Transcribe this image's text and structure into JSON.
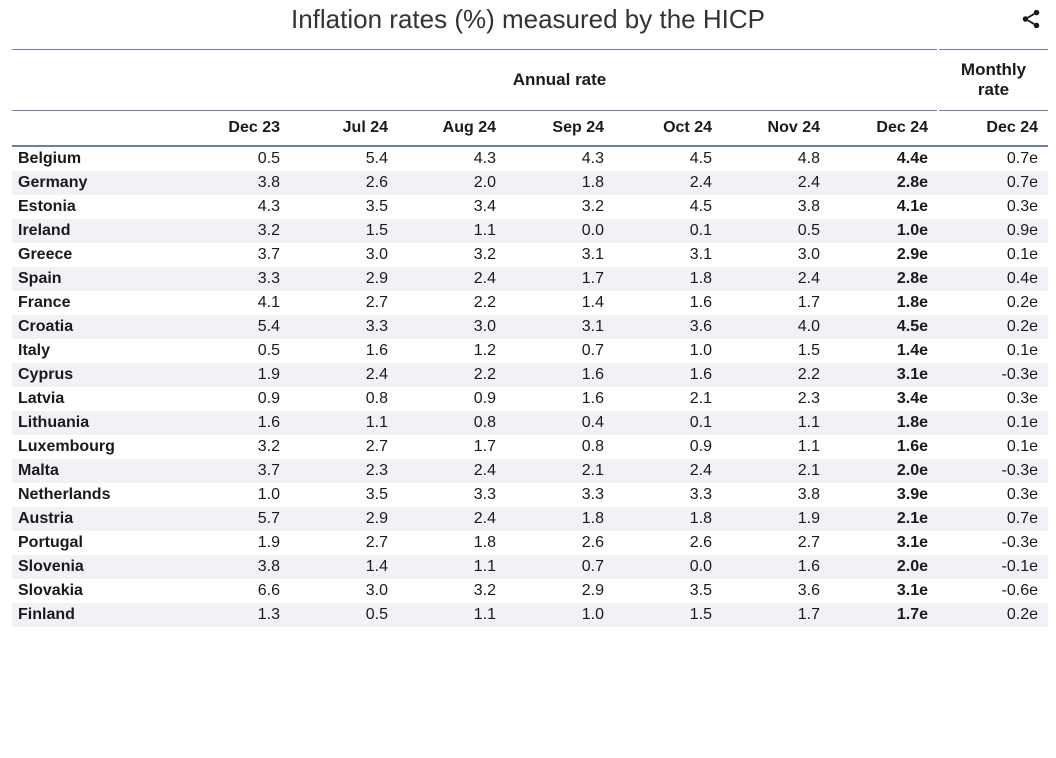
{
  "title": "Inflation rates (%) measured by the HICP",
  "share_icon_color": "#1a1a1a",
  "group_headers": {
    "annual": "Annual rate",
    "monthly": "Monthly rate"
  },
  "columns": [
    "Dec 23",
    "Jul 24",
    "Aug 24",
    "Sep 24",
    "Oct 24",
    "Nov 24",
    "Dec 24",
    "Dec 24"
  ],
  "bold_column_index": 6,
  "colors": {
    "header_border": "#6e7ea8",
    "row_even_bg": "#f0f2f7",
    "row_odd_bg": "#ffffff",
    "text": "#1a1a1a",
    "title": "#333333"
  },
  "countries": [
    {
      "name": "Belgium",
      "values": [
        "0.5",
        "5.4",
        "4.3",
        "4.3",
        "4.5",
        "4.8",
        "4.4e",
        "0.7e"
      ]
    },
    {
      "name": "Germany",
      "values": [
        "3.8",
        "2.6",
        "2.0",
        "1.8",
        "2.4",
        "2.4",
        "2.8e",
        "0.7e"
      ]
    },
    {
      "name": "Estonia",
      "values": [
        "4.3",
        "3.5",
        "3.4",
        "3.2",
        "4.5",
        "3.8",
        "4.1e",
        "0.3e"
      ]
    },
    {
      "name": "Ireland",
      "values": [
        "3.2",
        "1.5",
        "1.1",
        "0.0",
        "0.1",
        "0.5",
        "1.0e",
        "0.9e"
      ]
    },
    {
      "name": "Greece",
      "values": [
        "3.7",
        "3.0",
        "3.2",
        "3.1",
        "3.1",
        "3.0",
        "2.9e",
        "0.1e"
      ]
    },
    {
      "name": "Spain",
      "values": [
        "3.3",
        "2.9",
        "2.4",
        "1.7",
        "1.8",
        "2.4",
        "2.8e",
        "0.4e"
      ]
    },
    {
      "name": "France",
      "values": [
        "4.1",
        "2.7",
        "2.2",
        "1.4",
        "1.6",
        "1.7",
        "1.8e",
        "0.2e"
      ]
    },
    {
      "name": "Croatia",
      "values": [
        "5.4",
        "3.3",
        "3.0",
        "3.1",
        "3.6",
        "4.0",
        "4.5e",
        "0.2e"
      ]
    },
    {
      "name": "Italy",
      "values": [
        "0.5",
        "1.6",
        "1.2",
        "0.7",
        "1.0",
        "1.5",
        "1.4e",
        "0.1e"
      ]
    },
    {
      "name": "Cyprus",
      "values": [
        "1.9",
        "2.4",
        "2.2",
        "1.6",
        "1.6",
        "2.2",
        "3.1e",
        "-0.3e"
      ]
    },
    {
      "name": "Latvia",
      "values": [
        "0.9",
        "0.8",
        "0.9",
        "1.6",
        "2.1",
        "2.3",
        "3.4e",
        "0.3e"
      ]
    },
    {
      "name": "Lithuania",
      "values": [
        "1.6",
        "1.1",
        "0.8",
        "0.4",
        "0.1",
        "1.1",
        "1.8e",
        "0.1e"
      ]
    },
    {
      "name": "Luxembourg",
      "values": [
        "3.2",
        "2.7",
        "1.7",
        "0.8",
        "0.9",
        "1.1",
        "1.6e",
        "0.1e"
      ]
    },
    {
      "name": "Malta",
      "values": [
        "3.7",
        "2.3",
        "2.4",
        "2.1",
        "2.4",
        "2.1",
        "2.0e",
        "-0.3e"
      ]
    },
    {
      "name": "Netherlands",
      "values": [
        "1.0",
        "3.5",
        "3.3",
        "3.3",
        "3.3",
        "3.8",
        "3.9e",
        "0.3e"
      ]
    },
    {
      "name": "Austria",
      "values": [
        "5.7",
        "2.9",
        "2.4",
        "1.8",
        "1.8",
        "1.9",
        "2.1e",
        "0.7e"
      ]
    },
    {
      "name": "Portugal",
      "values": [
        "1.9",
        "2.7",
        "1.8",
        "2.6",
        "2.6",
        "2.7",
        "3.1e",
        "-0.3e"
      ]
    },
    {
      "name": "Slovenia",
      "values": [
        "3.8",
        "1.4",
        "1.1",
        "0.7",
        "0.0",
        "1.6",
        "2.0e",
        "-0.1e"
      ]
    },
    {
      "name": "Slovakia",
      "values": [
        "6.6",
        "3.0",
        "3.2",
        "2.9",
        "3.5",
        "3.6",
        "3.1e",
        "-0.6e"
      ]
    },
    {
      "name": "Finland",
      "values": [
        "1.3",
        "0.5",
        "1.1",
        "1.0",
        "1.5",
        "1.7",
        "1.7e",
        "0.2e"
      ]
    }
  ]
}
